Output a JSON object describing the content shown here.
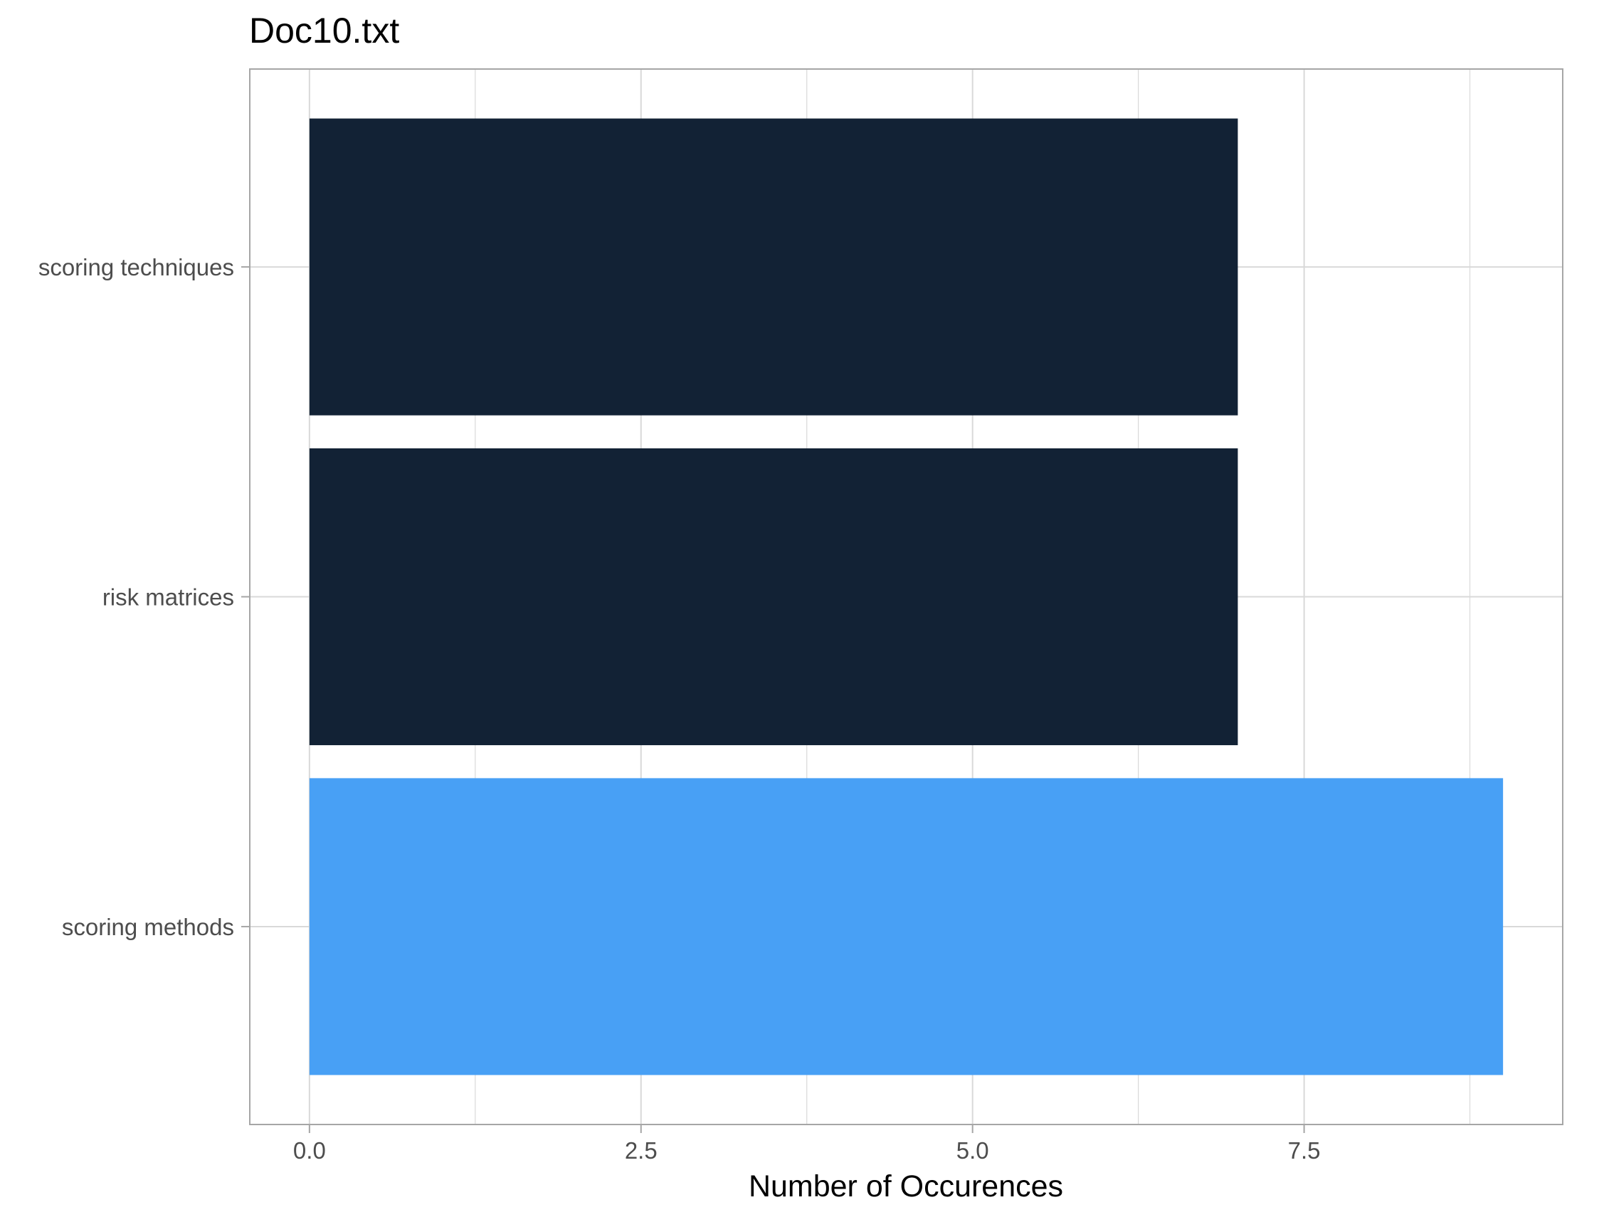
{
  "chart_data": {
    "type": "bar",
    "orientation": "horizontal",
    "title": "Doc10.txt",
    "xlabel": "Number of Occurences",
    "ylabel": "",
    "categories": [
      "scoring methods",
      "risk matrices",
      "scoring techniques"
    ],
    "values": [
      9,
      7,
      7
    ],
    "bar_colors": [
      "#48a0f5",
      "#122235",
      "#122235"
    ],
    "xlim": [
      -0.45,
      9.45
    ],
    "xticks": [
      0.0,
      2.5,
      5.0,
      7.5
    ],
    "xtick_labels": [
      "0.0",
      "2.5",
      "5.0",
      "7.5"
    ],
    "minor_xticks": [
      1.25,
      3.75,
      6.25,
      8.75
    ],
    "grid": true,
    "legend": "none",
    "colors": {
      "panel_border": "#a6a6a6",
      "grid": "#d9d9d9",
      "highlight": "#48a0f5",
      "default_bar": "#122235"
    }
  }
}
